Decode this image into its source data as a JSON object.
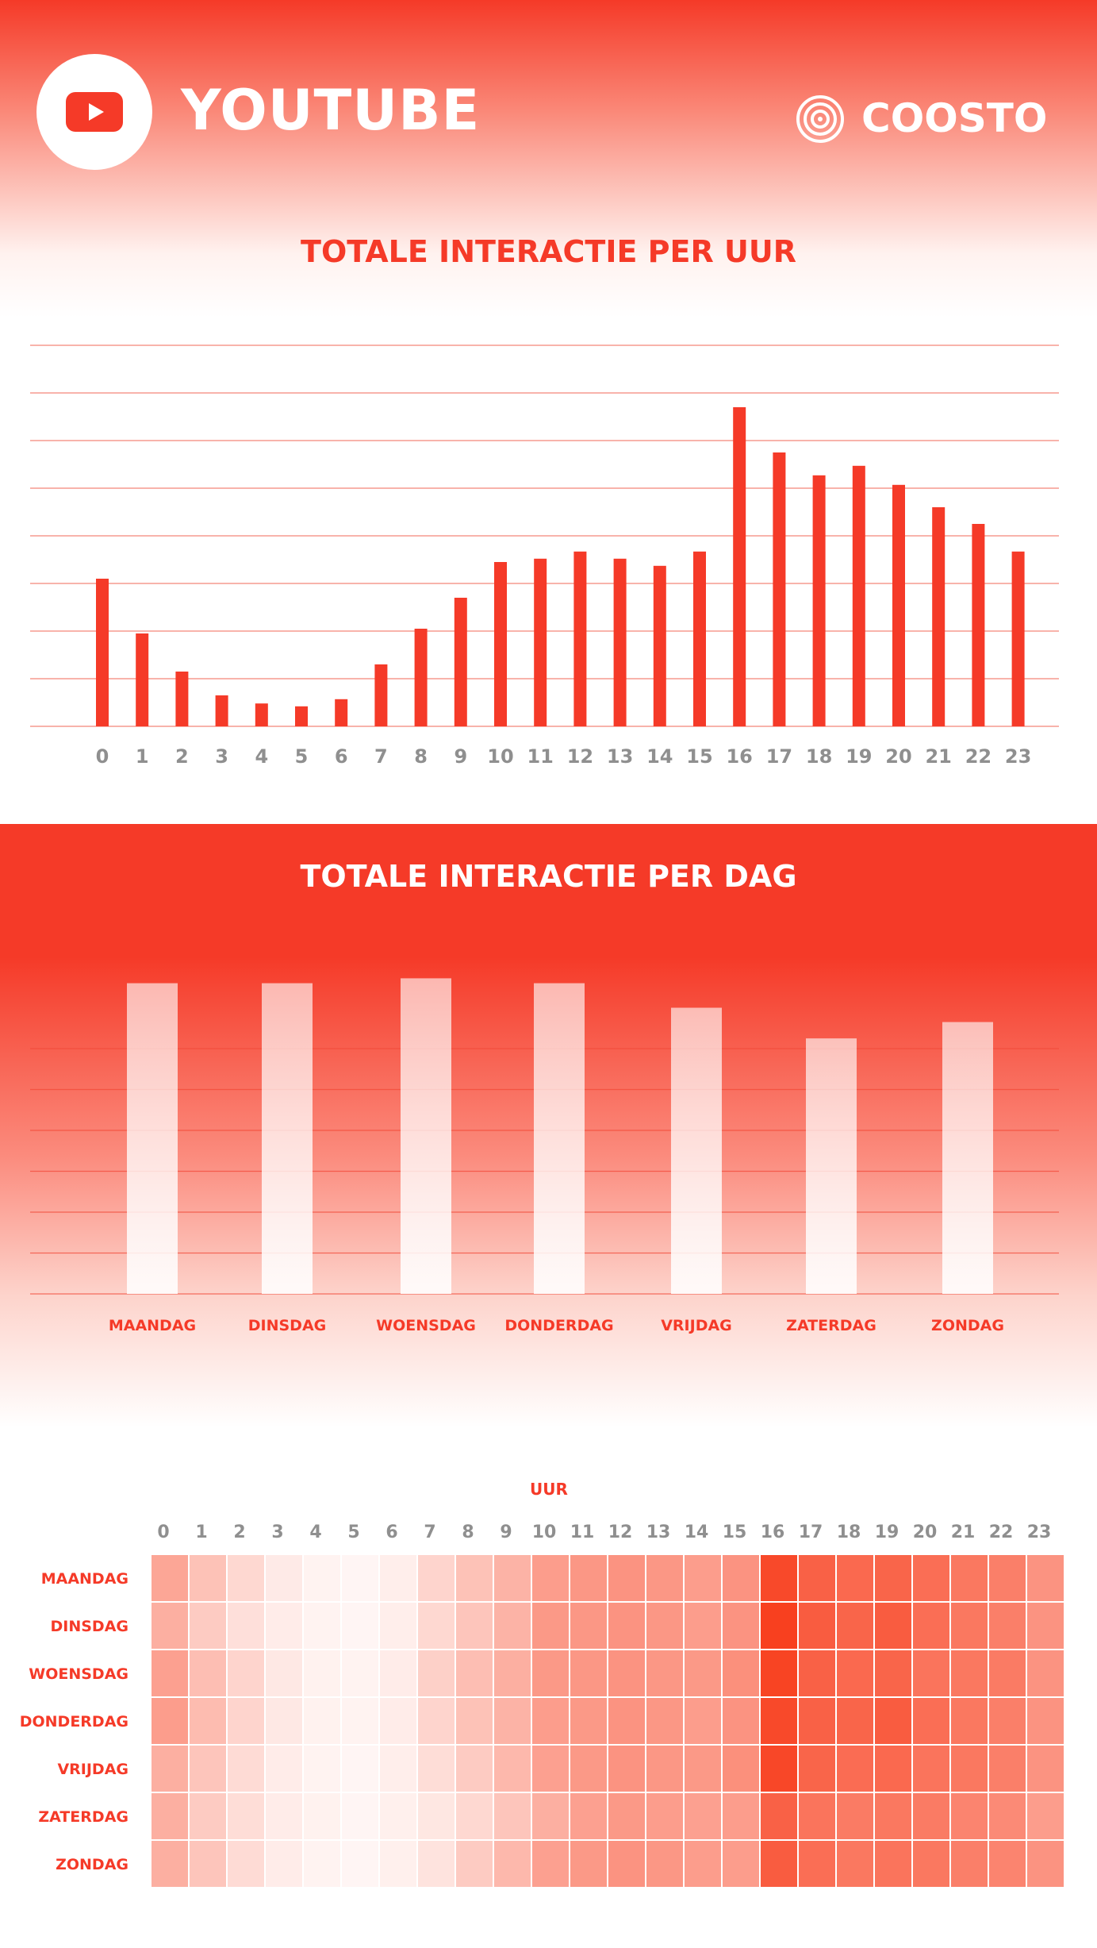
{
  "header": {
    "brand_title": "YOUTUBE",
    "brand_icon": "youtube-play-icon",
    "partner_name": "COOSTO",
    "partner_icon": "coosto-target-icon"
  },
  "colors": {
    "accent": "#f53a28",
    "grid": "#f59a8f",
    "tick": "#8f8f8f",
    "heat_low": "#fff9f8",
    "heat_high": "#f8401f"
  },
  "chart_data": [
    {
      "type": "bar",
      "title": "TOTALE INTERACTIE PER UUR",
      "categories": [
        "0",
        "1",
        "2",
        "3",
        "4",
        "5",
        "6",
        "7",
        "8",
        "9",
        "10",
        "11",
        "12",
        "13",
        "14",
        "15",
        "16",
        "17",
        "18",
        "19",
        "20",
        "21",
        "22",
        "23"
      ],
      "values": [
        31,
        19.5,
        11.5,
        6.5,
        4.8,
        4.2,
        5.7,
        13,
        20.5,
        27,
        34.5,
        35.2,
        36.7,
        35.2,
        33.7,
        36.7,
        67,
        57.5,
        52.7,
        54.7,
        50.7,
        46,
        42.5,
        36.7
      ],
      "ylim": [
        0,
        80
      ],
      "grid": true
    },
    {
      "type": "bar",
      "title": "TOTALE INTERACTIE PER DAG",
      "categories": [
        "MAANDAG",
        "DINSDAG",
        "WOENSDAG",
        "DONDERDAG",
        "VRIJDAG",
        "ZATERDAG",
        "ZONDAG"
      ],
      "values": [
        76,
        76,
        77.2,
        76,
        70,
        62.5,
        66.5
      ],
      "ylim": [
        0,
        60
      ],
      "grid": true
    },
    {
      "type": "heatmap",
      "xlabel": "UUR",
      "x": [
        "0",
        "1",
        "2",
        "3",
        "4",
        "5",
        "6",
        "7",
        "8",
        "9",
        "10",
        "11",
        "12",
        "13",
        "14",
        "15",
        "16",
        "17",
        "18",
        "19",
        "20",
        "21",
        "22",
        "23"
      ],
      "y": [
        "MAANDAG",
        "DINSDAG",
        "WOENSDAG",
        "DONDERDAG",
        "VRIJDAG",
        "ZATERDAG",
        "ZONDAG"
      ],
      "values": [
        [
          45,
          30,
          18,
          8,
          3,
          2,
          6,
          20,
          30,
          38,
          50,
          53,
          55,
          53,
          50,
          55,
          95,
          82,
          78,
          80,
          75,
          70,
          66,
          55
        ],
        [
          40,
          25,
          14,
          7,
          3,
          2,
          6,
          18,
          28,
          38,
          52,
          53,
          55,
          53,
          50,
          55,
          100,
          85,
          80,
          85,
          75,
          70,
          66,
          55
        ],
        [
          48,
          32,
          20,
          9,
          4,
          3,
          7,
          22,
          32,
          40,
          52,
          53,
          55,
          53,
          52,
          57,
          98,
          82,
          78,
          80,
          72,
          70,
          68,
          55
        ],
        [
          50,
          33,
          20,
          9,
          4,
          3,
          7,
          20,
          30,
          38,
          50,
          52,
          55,
          53,
          50,
          55,
          95,
          82,
          80,
          85,
          75,
          70,
          66,
          55
        ],
        [
          40,
          28,
          16,
          7,
          3,
          2,
          6,
          15,
          25,
          35,
          48,
          52,
          55,
          53,
          52,
          57,
          96,
          80,
          76,
          78,
          72,
          70,
          66,
          55
        ],
        [
          40,
          25,
          15,
          7,
          4,
          2,
          5,
          10,
          18,
          28,
          40,
          48,
          52,
          50,
          48,
          50,
          82,
          72,
          68,
          70,
          68,
          63,
          60,
          50
        ],
        [
          40,
          28,
          16,
          7,
          3,
          2,
          5,
          12,
          25,
          35,
          48,
          52,
          55,
          53,
          50,
          50,
          85,
          75,
          70,
          72,
          70,
          66,
          63,
          55
        ]
      ]
    }
  ]
}
